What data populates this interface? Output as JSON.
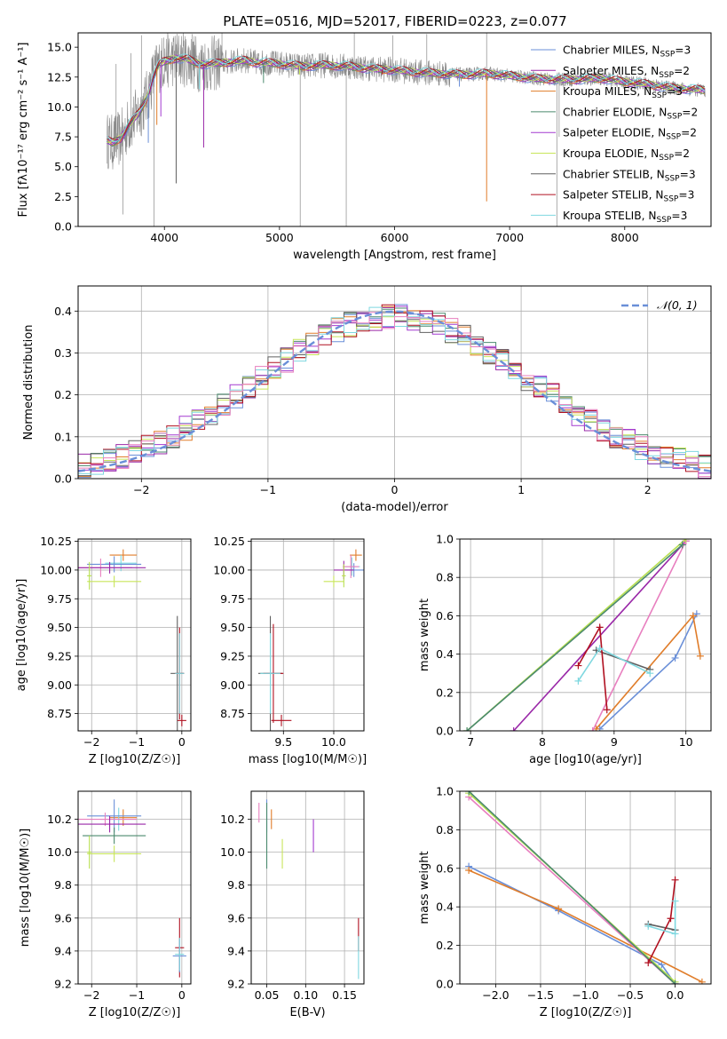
{
  "figure": {
    "title": "PLATE=0516, MJD=52017, FIBERID=0223, z=0.077"
  },
  "model_colors": {
    "Chabrier MILES": "#6a8fd8",
    "Salpeter MILES": "#9a28a8",
    "Kroupa MILES": "#e07d2a",
    "Chabrier ELODIE": "#4b8a6e",
    "Salpeter ELODIE": "#a43ad0",
    "Kroupa ELODIE": "#c8e55a",
    "Chabrier STELIB": "#606060",
    "Salpeter STELIB": "#b01020",
    "Kroupa STELIB": "#7fd8e0",
    "Pink": "#e87fbf",
    "Light green": "#b8e050"
  },
  "chart_data": [
    {
      "id": "spectrum",
      "type": "line",
      "title": "PLATE=0516, MJD=52017, FIBERID=0223, z=0.077",
      "xlabel": "wavelength [Angstrom, rest frame]",
      "ylabel": "Flux [fλ10⁻¹⁷ erg cm⁻² s⁻¹ A⁻¹]",
      "xlim": [
        3250,
        8750
      ],
      "ylim": [
        0,
        16.2
      ],
      "xticks": [
        4000,
        5000,
        6000,
        7000,
        8000
      ],
      "yticks": [
        0.0,
        2.5,
        5.0,
        7.5,
        10.0,
        12.5,
        15.0
      ],
      "grid": false,
      "legend_position": "right",
      "continuum": {
        "x": [
          3500,
          3550,
          3620,
          3700,
          3780,
          3850,
          3900,
          3950,
          4000,
          4100,
          4200,
          4300,
          4400,
          4500,
          4600,
          4700,
          4800,
          4900,
          5000,
          5200,
          5400,
          5600,
          5800,
          6000,
          6200,
          6400,
          6600,
          6800,
          7000,
          7200,
          7400,
          7600,
          7800,
          8000,
          8200,
          8400,
          8700
        ],
        "y": [
          7.2,
          7.0,
          7.4,
          8.6,
          9.5,
          10.8,
          12.5,
          13.5,
          13.8,
          14.1,
          14.0,
          13.6,
          13.6,
          13.7,
          13.8,
          13.9,
          13.7,
          13.7,
          13.6,
          13.4,
          13.5,
          13.4,
          13.2,
          13.1,
          12.9,
          12.8,
          12.7,
          12.8,
          12.6,
          12.4,
          12.3,
          12.3,
          12.4,
          12.1,
          11.9,
          11.6,
          11.4
        ]
      },
      "absorption_dips": [
        {
          "x": 3860,
          "y": 7.0
        },
        {
          "x": 3934,
          "y": 8.5
        },
        {
          "x": 3969,
          "y": 9.2
        },
        {
          "x": 4102,
          "y": 3.6
        },
        {
          "x": 4304,
          "y": 11.5
        },
        {
          "x": 4341,
          "y": 6.6
        },
        {
          "x": 4861,
          "y": 12.0
        },
        {
          "x": 5175,
          "y": 12.7
        },
        {
          "x": 5894,
          "y": 12.7
        },
        {
          "x": 6563,
          "y": 11.7
        },
        {
          "x": 6800,
          "y": 2.1
        }
      ],
      "noise_spikes": [
        {
          "x": 3580,
          "y": 13.6
        },
        {
          "x": 3640,
          "y": 1.0
        },
        {
          "x": 3710,
          "y": 14.5
        },
        {
          "x": 3800,
          "y": 16.0
        },
        {
          "x": 3910,
          "y": 0.0
        },
        {
          "x": 3995,
          "y": 15.8
        },
        {
          "x": 4240,
          "y": 16.1
        },
        {
          "x": 4500,
          "y": 16.2
        },
        {
          "x": 5180,
          "y": 0.0
        },
        {
          "x": 5580,
          "y": 0.0
        },
        {
          "x": 5650,
          "y": 16.2
        },
        {
          "x": 5985,
          "y": 16.0
        },
        {
          "x": 6280,
          "y": 16.1
        },
        {
          "x": 6800,
          "y": 16.2
        },
        {
          "x": 7410,
          "y": 0.0
        },
        {
          "x": 7430,
          "y": 7.5
        }
      ],
      "series": [
        {
          "name": "Chabrier MILES",
          "nssp": "3",
          "color": "#6a8fd8"
        },
        {
          "name": "Salpeter MILES",
          "nssp": "2",
          "color": "#9a28a8"
        },
        {
          "name": "Kroupa MILES",
          "nssp": "3",
          "color": "#e07d2a"
        },
        {
          "name": "Chabrier ELODIE",
          "nssp": "2",
          "color": "#4b8a6e"
        },
        {
          "name": "Salpeter ELODIE",
          "nssp": "2",
          "color": "#a43ad0"
        },
        {
          "name": "Kroupa ELODIE",
          "nssp": "2",
          "color": "#c8e55a"
        },
        {
          "name": "Chabrier STELIB",
          "nssp": "3",
          "color": "#606060"
        },
        {
          "name": "Salpeter STELIB",
          "nssp": "3",
          "color": "#b01020"
        },
        {
          "name": "Kroupa STELIB",
          "nssp": "3",
          "color": "#7fd8e0"
        }
      ]
    },
    {
      "id": "residuals",
      "type": "line",
      "xlabel": "(data-model)/error",
      "ylabel": "Normed distribution",
      "xlim": [
        -2.5,
        2.5
      ],
      "ylim": [
        0,
        0.46
      ],
      "xticks": [
        -2,
        -1,
        0,
        1,
        2
      ],
      "yticks": [
        0.0,
        0.1,
        0.2,
        0.3,
        0.4
      ],
      "grid": true,
      "legend_position": "top-right",
      "legend_label": "𝒩(0, 1)",
      "gaussian": {
        "mean": 0,
        "sigma": 1,
        "color": "#6a8fd8"
      },
      "histogram_bin_width": 0.1,
      "histogram_colors": [
        "#6a8fd8",
        "#9a28a8",
        "#e07d2a",
        "#4b8a6e",
        "#a43ad0",
        "#c8e55a",
        "#606060",
        "#b01020",
        "#7fd8e0",
        "#e87fbf"
      ]
    },
    {
      "id": "age_vs_Z",
      "type": "scatter",
      "xlabel": "Z [log10(Z/Z☉)]",
      "ylabel": "age  [log10(age/yr)]",
      "xlim": [
        -2.3,
        0.2
      ],
      "ylim": [
        8.6,
        10.27
      ],
      "xticks": [
        -2,
        -1,
        0
      ],
      "yticks": [
        8.75,
        9.0,
        9.25,
        9.5,
        9.75,
        10.0,
        10.25
      ],
      "grid": true,
      "points": [
        {
          "x": -1.3,
          "y": 10.13,
          "xerr": 0.3,
          "yerr": 0.05,
          "color": "#e07d2a"
        },
        {
          "x": -1.35,
          "y": 10.06,
          "xerr": 0.35,
          "yerr": 0.07,
          "color": "#7fd8e0"
        },
        {
          "x": -1.5,
          "y": 10.05,
          "xerr": 0.6,
          "yerr": 0.07,
          "color": "#6a8fd8"
        },
        {
          "x": -1.8,
          "y": 10.02,
          "xerr": 0.7,
          "yerr": 0.08,
          "color": "#e87fbf"
        },
        {
          "x": -1.6,
          "y": 10.02,
          "xerr": 0.8,
          "yerr": 0.05,
          "color": "#9a28a8"
        },
        {
          "x": -1.5,
          "y": 9.9,
          "xerr": 0.6,
          "yerr": 0.05,
          "color": "#c8e55a"
        },
        {
          "x": -2.05,
          "y": 9.95,
          "xerr": 0.05,
          "yerr": 0.12,
          "color": "#b8e050"
        },
        {
          "x": -0.1,
          "y": 9.1,
          "xerr": 0.15,
          "yerr": 0.5,
          "color": "#606060"
        },
        {
          "x": -0.05,
          "y": 9.1,
          "xerr": 0.1,
          "yerr": 0.4,
          "color": "#b01020"
        },
        {
          "x": -0.05,
          "y": 9.1,
          "xerr": 0.1,
          "yerr": 0.35,
          "color": "#7fd8e0"
        },
        {
          "x": 0.0,
          "y": 8.69,
          "xerr": 0.1,
          "yerr": 0.05,
          "color": "#b01020"
        }
      ]
    },
    {
      "id": "age_vs_mass",
      "type": "scatter",
      "xlabel": "mass [log10(M/M☉)]",
      "ylabel": "",
      "xlim": [
        9.18,
        10.3
      ],
      "ylim": [
        8.6,
        10.27
      ],
      "xticks": [
        9.5,
        10.0
      ],
      "yticks": [
        8.75,
        9.0,
        9.25,
        9.5,
        9.75,
        10.0,
        10.25
      ],
      "grid": true,
      "points": [
        {
          "x": 10.22,
          "y": 10.13,
          "xerr": 0.06,
          "yerr": 0.05,
          "color": "#e07d2a"
        },
        {
          "x": 10.18,
          "y": 10.03,
          "xerr": 0.08,
          "yerr": 0.08,
          "color": "#7fd8e0"
        },
        {
          "x": 10.2,
          "y": 10.0,
          "xerr": 0.1,
          "yerr": 0.06,
          "color": "#6a8fd8"
        },
        {
          "x": 10.17,
          "y": 10.03,
          "xerr": 0.08,
          "yerr": 0.1,
          "color": "#e87fbf"
        },
        {
          "x": 10.1,
          "y": 10.0,
          "xerr": 0.1,
          "yerr": 0.08,
          "color": "#9a28a8"
        },
        {
          "x": 10.0,
          "y": 9.9,
          "xerr": 0.1,
          "yerr": 0.05,
          "color": "#c8e55a"
        },
        {
          "x": 10.1,
          "y": 9.95,
          "xerr": 0.02,
          "yerr": 0.1,
          "color": "#b8e050"
        },
        {
          "x": 9.37,
          "y": 9.1,
          "xerr": 0.12,
          "yerr": 0.5,
          "color": "#606060"
        },
        {
          "x": 9.4,
          "y": 9.1,
          "xerr": 0.1,
          "yerr": 0.43,
          "color": "#b01020"
        },
        {
          "x": 9.37,
          "y": 9.1,
          "xerr": 0.1,
          "yerr": 0.35,
          "color": "#7fd8e0"
        },
        {
          "x": 9.48,
          "y": 8.69,
          "xerr": 0.1,
          "yerr": 0.05,
          "color": "#b01020"
        }
      ]
    },
    {
      "id": "massweight_vs_age",
      "type": "line",
      "xlabel": "age  [log10(age/yr)]",
      "ylabel": "mass weight",
      "xlim": [
        6.85,
        10.35
      ],
      "ylim": [
        0,
        1.0
      ],
      "xticks": [
        7,
        8,
        9,
        10
      ],
      "yticks": [
        0.0,
        0.2,
        0.4,
        0.6,
        0.8,
        1.0
      ],
      "grid": true,
      "series": [
        {
          "color": "#6a8fd8",
          "x": [
            8.8,
            9.85,
            10.15
          ],
          "y": [
            0.01,
            0.38,
            0.61
          ]
        },
        {
          "color": "#e07d2a",
          "x": [
            8.75,
            10.1,
            10.2
          ],
          "y": [
            0.01,
            0.6,
            0.39
          ]
        },
        {
          "color": "#9a28a8",
          "x": [
            7.6,
            10.0
          ],
          "y": [
            0.0,
            0.99
          ]
        },
        {
          "color": "#e87fbf",
          "x": [
            8.7,
            10.0
          ],
          "y": [
            0.0,
            0.99
          ]
        },
        {
          "color": "#b8e050",
          "x": [
            6.95,
            10.0
          ],
          "y": [
            0.0,
            1.0
          ]
        },
        {
          "color": "#4b8a6e",
          "x": [
            6.95,
            9.95
          ],
          "y": [
            0.0,
            0.97
          ]
        },
        {
          "color": "#606060",
          "x": [
            8.75,
            9.5
          ],
          "y": [
            0.42,
            0.32
          ]
        },
        {
          "color": "#b01020",
          "x": [
            8.5,
            8.8,
            8.9
          ],
          "y": [
            0.34,
            0.54,
            0.11
          ]
        },
        {
          "color": "#7fd8e0",
          "x": [
            8.5,
            8.8,
            9.5
          ],
          "y": [
            0.26,
            0.43,
            0.3
          ]
        }
      ]
    },
    {
      "id": "mass_vs_Z",
      "type": "scatter",
      "xlabel": "Z [log10(Z/Z☉)]",
      "ylabel": "mass [log10(M/M☉)]",
      "xlim": [
        -2.3,
        0.2
      ],
      "ylim": [
        9.2,
        10.37
      ],
      "xticks": [
        -2,
        -1,
        0
      ],
      "yticks": [
        9.2,
        9.4,
        9.6,
        9.8,
        10.0,
        10.2
      ],
      "grid": true,
      "points": [
        {
          "x": -1.3,
          "y": 10.21,
          "xerr": 0.3,
          "yerr": 0.05,
          "color": "#e07d2a"
        },
        {
          "x": -1.4,
          "y": 10.2,
          "xerr": 0.4,
          "yerr": 0.07,
          "color": "#7fd8e0"
        },
        {
          "x": -1.5,
          "y": 10.22,
          "xerr": 0.6,
          "yerr": 0.1,
          "color": "#6a8fd8"
        },
        {
          "x": -1.7,
          "y": 10.2,
          "xerr": 0.7,
          "yerr": 0.04,
          "color": "#e87fbf"
        },
        {
          "x": -1.6,
          "y": 10.17,
          "xerr": 0.8,
          "yerr": 0.05,
          "color": "#9a28a8"
        },
        {
          "x": -1.5,
          "y": 10.1,
          "xerr": 0.7,
          "yerr": 0.05,
          "color": "#4b8a6e"
        },
        {
          "x": -1.5,
          "y": 9.99,
          "xerr": 0.6,
          "yerr": 0.05,
          "color": "#c8e55a"
        },
        {
          "x": -2.05,
          "y": 10.0,
          "xerr": 0.05,
          "yerr": 0.1,
          "color": "#b8e050"
        },
        {
          "x": -0.05,
          "y": 9.42,
          "xerr": 0.1,
          "yerr": 0.18,
          "color": "#b01020"
        },
        {
          "x": -0.05,
          "y": 9.37,
          "xerr": 0.15,
          "yerr": 0.1,
          "color": "#6a8fd8"
        },
        {
          "x": -0.05,
          "y": 9.38,
          "xerr": 0.1,
          "yerr": 0.1,
          "color": "#7fd8e0"
        }
      ]
    },
    {
      "id": "mass_vs_ebv",
      "type": "scatter",
      "xlabel": "E(B-V)",
      "ylabel": "",
      "xlim": [
        0.03,
        0.175
      ],
      "ylim": [
        9.2,
        10.37
      ],
      "xticks": [
        0.05,
        0.1,
        0.15
      ],
      "yticks": [
        9.2,
        9.4,
        9.6,
        9.8,
        10.0,
        10.2
      ],
      "grid": true,
      "points": [
        {
          "x": 0.04,
          "y": 10.24,
          "yerr": 0.06,
          "color": "#e87fbf"
        },
        {
          "x": 0.05,
          "y": 10.22,
          "yerr": 0.1,
          "color": "#6a8fd8"
        },
        {
          "x": 0.056,
          "y": 10.2,
          "yerr": 0.06,
          "color": "#e07d2a"
        },
        {
          "x": 0.05,
          "y": 10.1,
          "yerr": 0.2,
          "color": "#4b8a6e"
        },
        {
          "x": 0.07,
          "y": 9.99,
          "yerr": 0.09,
          "color": "#c8e55a"
        },
        {
          "x": 0.11,
          "y": 10.1,
          "yerr": 0.1,
          "color": "#a43ad0"
        },
        {
          "x": 0.168,
          "y": 9.5,
          "yerr": 0.1,
          "color": "#b01020"
        },
        {
          "x": 0.168,
          "y": 9.36,
          "yerr": 0.13,
          "color": "#7fd8e0"
        }
      ]
    },
    {
      "id": "massweight_vs_Z",
      "type": "line",
      "xlabel": "Z [log10(Z/Z☉)]",
      "ylabel": "mass weight",
      "xlim": [
        -2.4,
        0.4
      ],
      "ylim": [
        0,
        1.0
      ],
      "xticks": [
        -2.0,
        -1.5,
        -1.0,
        -0.5,
        0.0
      ],
      "yticks": [
        0.0,
        0.2,
        0.4,
        0.6,
        0.8,
        1.0
      ],
      "grid": true,
      "series": [
        {
          "color": "#6a8fd8",
          "x": [
            -2.3,
            -1.3,
            -0.15,
            0.0
          ],
          "y": [
            0.61,
            0.38,
            0.1,
            0.0
          ]
        },
        {
          "color": "#e07d2a",
          "x": [
            -2.3,
            -1.3,
            0.3
          ],
          "y": [
            0.59,
            0.39,
            0.01
          ]
        },
        {
          "color": "#e87fbf",
          "x": [
            -2.3,
            0.0
          ],
          "y": [
            0.97,
            0.0
          ]
        },
        {
          "color": "#b8e050",
          "x": [
            -2.3,
            0.0
          ],
          "y": [
            0.99,
            0.01
          ]
        },
        {
          "color": "#4b8a6e",
          "x": [
            -2.3,
            0.0
          ],
          "y": [
            1.0,
            0.0
          ]
        },
        {
          "color": "#606060",
          "x": [
            -0.3,
            0.0
          ],
          "y": [
            0.31,
            0.28
          ]
        },
        {
          "color": "#b01020",
          "x": [
            -0.3,
            -0.05,
            0.0
          ],
          "y": [
            0.11,
            0.34,
            0.54
          ]
        },
        {
          "color": "#7fd8e0",
          "x": [
            -0.3,
            0.0,
            0.0
          ],
          "y": [
            0.3,
            0.26,
            0.43
          ]
        }
      ]
    }
  ]
}
